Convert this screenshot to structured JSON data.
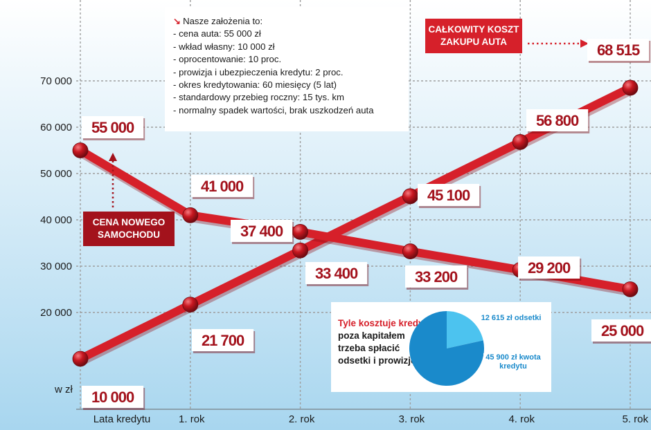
{
  "chart_data": {
    "type": "line",
    "ylabel_unit": "w zł",
    "x_categories": [
      "Lata kredytu",
      "1. rok",
      "2. rok",
      "3. rok",
      "4. rok",
      "5. rok"
    ],
    "ylim": [
      0,
      70000
    ],
    "yticks": [
      "70 000",
      "60 000",
      "50 000",
      "40 000",
      "30 000",
      "20 000"
    ],
    "ytick_values": [
      70000,
      60000,
      50000,
      40000,
      30000,
      20000
    ],
    "grid": true,
    "series": [
      {
        "name": "Całkowity koszt zakupu auta",
        "x": [
          0,
          0.5,
          1,
          2,
          3,
          4,
          5
        ],
        "values": [
          10000,
          15850,
          21700,
          33400,
          45100,
          56800,
          68515
        ],
        "labels": [
          "10 000",
          null,
          "21 700",
          "33 400",
          "45 100",
          "56 800",
          "68 515"
        ]
      },
      {
        "name": "Cena nowego samochodu",
        "x": [
          0,
          0.5,
          1,
          2,
          3,
          4,
          5
        ],
        "values": [
          55000,
          48000,
          41000,
          37400,
          33200,
          29200,
          25000
        ],
        "labels": [
          "55 000",
          null,
          "41 000",
          "37 400",
          "33 200",
          "29 200",
          "25 000"
        ]
      }
    ],
    "colors": {
      "line": "#d6202a",
      "label": "#a3121c",
      "background_top": "#ffffff",
      "background_bottom": "#a8d6ef"
    }
  },
  "callouts": {
    "total_cost": {
      "line1": "CAŁKOWITY KOSZT",
      "line2": "ZAKUPU AUTA"
    },
    "new_car_price": {
      "line1": "CENA NOWEGO",
      "line2": "SAMOCHODU"
    }
  },
  "assumptions": {
    "heading": "Nasze założenia to:",
    "items": [
      "cena auta: 55 000 zł",
      "wkład własny: 10 000 zł",
      "oprocentowanie: 10 proc.",
      "prowizja i ubezpieczenia kredytu: 2 proc.",
      "okres kredytowania: 60 miesięcy (5 lat)",
      "standardowy przebieg roczny: 15 tys. km",
      "normalny spadek wartości, brak uszkodzeń auta"
    ]
  },
  "credit_cost": {
    "text_red": "Tyle kosztuje kredyt:",
    "text_black": "poza kapitałem trzeba spłacić odsetki i prowizję.",
    "pie": [
      {
        "label": "12 615 zł odsetki",
        "value": 12615,
        "color": "#4cc3ef"
      },
      {
        "label": "45 900 zł kwota kredytu",
        "value": 45900,
        "color": "#1a8acb"
      }
    ]
  }
}
